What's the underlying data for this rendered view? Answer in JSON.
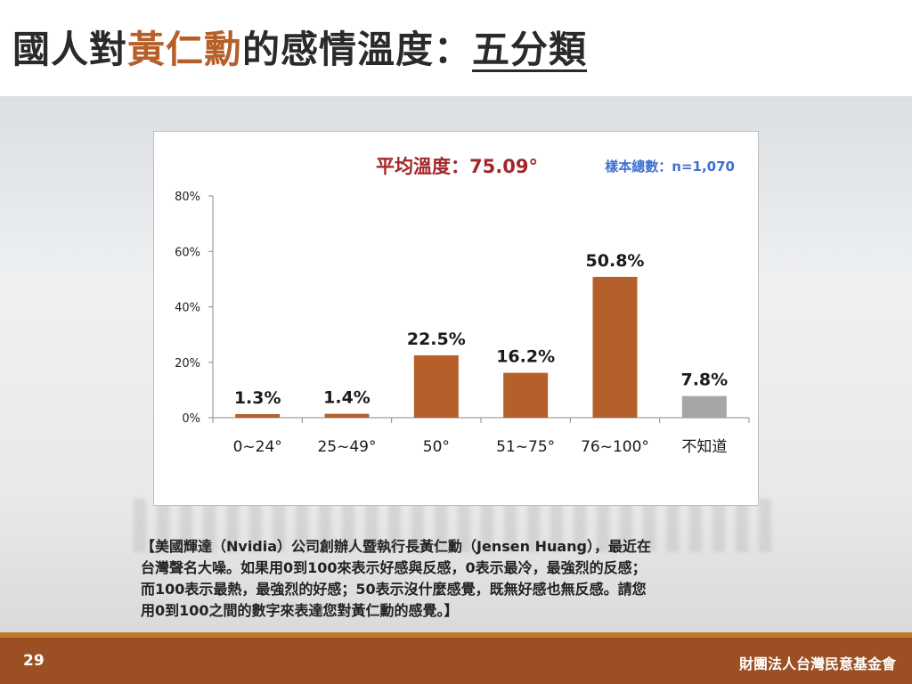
{
  "title": {
    "part1": "國人對",
    "accent": "黃仁勳",
    "part2": "的感情溫度：",
    "underlined": "五分類"
  },
  "chart_data": {
    "type": "bar",
    "avg_label": "平均溫度：75.09°",
    "sample_label": "樣本總數：n=1,070",
    "categories": [
      "0~24°",
      "25~49°",
      "50°",
      "51~75°",
      "76~100°",
      "不知道"
    ],
    "values": [
      1.3,
      1.4,
      22.5,
      16.2,
      50.8,
      7.8
    ],
    "value_labels": [
      "1.3%",
      "1.4%",
      "22.5%",
      "16.2%",
      "50.8%",
      "7.8%"
    ],
    "yticks": [
      "0%",
      "20%",
      "40%",
      "60%",
      "80%"
    ],
    "ylim": [
      0,
      80
    ],
    "bar_colors": [
      "#b5602a",
      "#b5602a",
      "#b5602a",
      "#b5602a",
      "#b5602a",
      "#a6a6a6"
    ],
    "avg_color": "#a3262a",
    "sample_color": "#3f6fd1"
  },
  "description": {
    "lines": [
      "【美國輝達（Nvidia）公司創辦人暨執行長黃仁勳（Jensen Huang），最近在",
      "台灣聲名大噪。如果用0到100來表示好感與反感，0表示最冷，最強烈的反感；",
      "而100表示最熱，最強烈的好感；50表示沒什麼感覺，既無好感也無反感。請您",
      "用0到100之間的數字來表達您對黃仁勳的感覺。】"
    ]
  },
  "footer": {
    "page_number": "29",
    "organization": "財團法人台灣民意基金會"
  }
}
